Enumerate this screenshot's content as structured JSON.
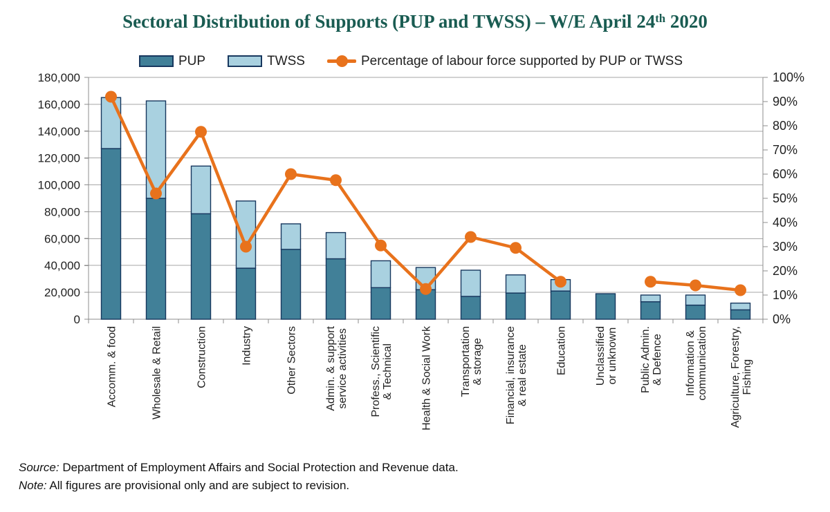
{
  "header": {
    "title_prefix": "Sectoral Distribution of Supports (PUP and TWSS) – W/E April 24",
    "title_superscript": "th",
    "title_suffix": " 2020"
  },
  "legend": {
    "pup_label": "PUP",
    "twss_label": "TWSS",
    "line_label": "Percentage of labour force supported by PUP or TWSS"
  },
  "footer": {
    "source_label": "Source:",
    "source_text": " Department of Employment Affairs and Social Protection and Revenue data.",
    "note_label": "Note:",
    "note_text": " All figures are provisional only and are subject to revision."
  },
  "colors": {
    "pup_fill": "#418098",
    "twss_fill": "#A9D1E0",
    "bar_stroke": "#17375E",
    "line": "#E8721C",
    "title": "#1A5C52",
    "grid": "#A6A6A6",
    "axis": "#8C8C8C",
    "text": "#1f1f1f"
  },
  "chart_data": {
    "type": "bar",
    "subtype": "stacked-bars-with-line-overlay",
    "title": "Sectoral Distribution of Supports (PUP and TWSS) – W/E April 24th 2020",
    "grid": true,
    "legend_position": "top",
    "categories": [
      {
        "label": "Accomm. & food",
        "lines": [
          "Accomm. & food"
        ]
      },
      {
        "label": "Wholesale & Retail",
        "lines": [
          "Wholesale & Retail"
        ]
      },
      {
        "label": "Construction",
        "lines": [
          "Construction"
        ]
      },
      {
        "label": "Industry",
        "lines": [
          "Industry"
        ]
      },
      {
        "label": "Other Sectors",
        "lines": [
          "Other Sectors"
        ]
      },
      {
        "label": "Admin. & support service activities",
        "lines": [
          "Admin. & support",
          "service activities"
        ]
      },
      {
        "label": "Profess., Scientific & Technical",
        "lines": [
          "Profess., Scientific",
          "& Technical"
        ]
      },
      {
        "label": "Health & Social Work",
        "lines": [
          "Health & Social Work"
        ]
      },
      {
        "label": "Transportation & storage",
        "lines": [
          "Transportation",
          "& storage"
        ]
      },
      {
        "label": "Financial, insurance & real estate",
        "lines": [
          "Financial, insurance",
          "& real estate"
        ]
      },
      {
        "label": "Education",
        "lines": [
          "Education"
        ]
      },
      {
        "label": "Unclassified or unknown",
        "lines": [
          "Unclassified",
          "or unknown"
        ]
      },
      {
        "label": "Public Admin. & Defence",
        "lines": [
          "Public Admin.",
          "& Defence"
        ]
      },
      {
        "label": "Information & communication",
        "lines": [
          "Information &",
          "communication"
        ]
      },
      {
        "label": "Agriculture, Forestry, Fishing",
        "lines": [
          "Agriculture, Forestry,",
          "Fishing"
        ]
      }
    ],
    "series": [
      {
        "name": "PUP",
        "type": "bar",
        "stack": "supports",
        "axis": "left",
        "values": [
          127000,
          90000,
          78500,
          38000,
          52000,
          45000,
          23500,
          22000,
          17000,
          19500,
          21000,
          19000,
          13000,
          10500,
          7000
        ]
      },
      {
        "name": "TWSS",
        "type": "bar",
        "stack": "supports",
        "axis": "left",
        "values": [
          38000,
          72500,
          35500,
          50000,
          19000,
          19500,
          20000,
          16500,
          19500,
          13500,
          8500,
          0,
          5000,
          7500,
          5000
        ]
      },
      {
        "name": "Percentage of labour force supported by PUP or TWSS",
        "type": "line",
        "axis": "right",
        "values": [
          92,
          52,
          77.5,
          30,
          60,
          57.5,
          30.5,
          12.5,
          34,
          29.5,
          15.5,
          null,
          15.5,
          14,
          12
        ]
      }
    ],
    "left_axis": {
      "min": 0,
      "max": 180000,
      "step": 20000,
      "tick_labels": [
        "0",
        "20,000",
        "40,000",
        "60,000",
        "80,000",
        "100,000",
        "120,000",
        "140,000",
        "160,000",
        "180,000"
      ]
    },
    "right_axis": {
      "min": 0,
      "max": 100,
      "step": 10,
      "tick_labels": [
        "0%",
        "10%",
        "20%",
        "30%",
        "40%",
        "50%",
        "60%",
        "70%",
        "80%",
        "90%",
        "100%"
      ]
    }
  }
}
